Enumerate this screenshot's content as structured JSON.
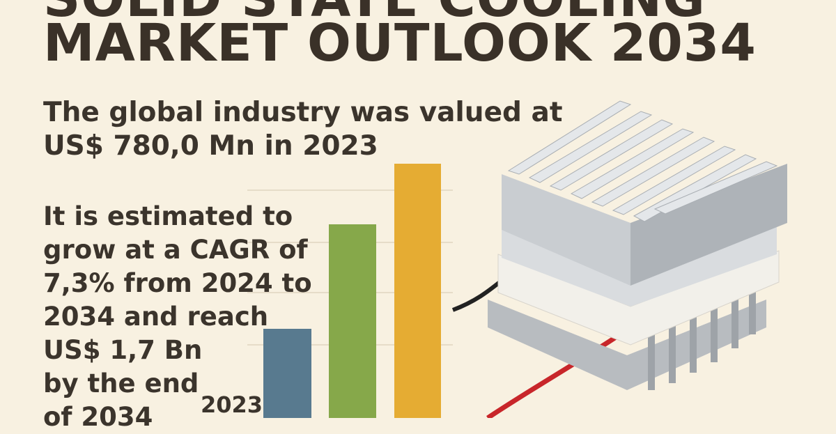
{
  "header": {
    "title_lines": [
      "SOLID STATE COOLING",
      "MARKET OUTLOOK 2034"
    ]
  },
  "valuation": {
    "lines": [
      "The global industry was valued at",
      "US$ 780,0 Mn in 2023"
    ]
  },
  "forecast": {
    "lines": [
      "It is estimated to",
      "grow at a CAGR of",
      "7,3% from 2024 to",
      "2034 and reach",
      "US$ 1,7 Bn",
      "by the end",
      "of 2034"
    ]
  },
  "chart_label": "2023"
}
